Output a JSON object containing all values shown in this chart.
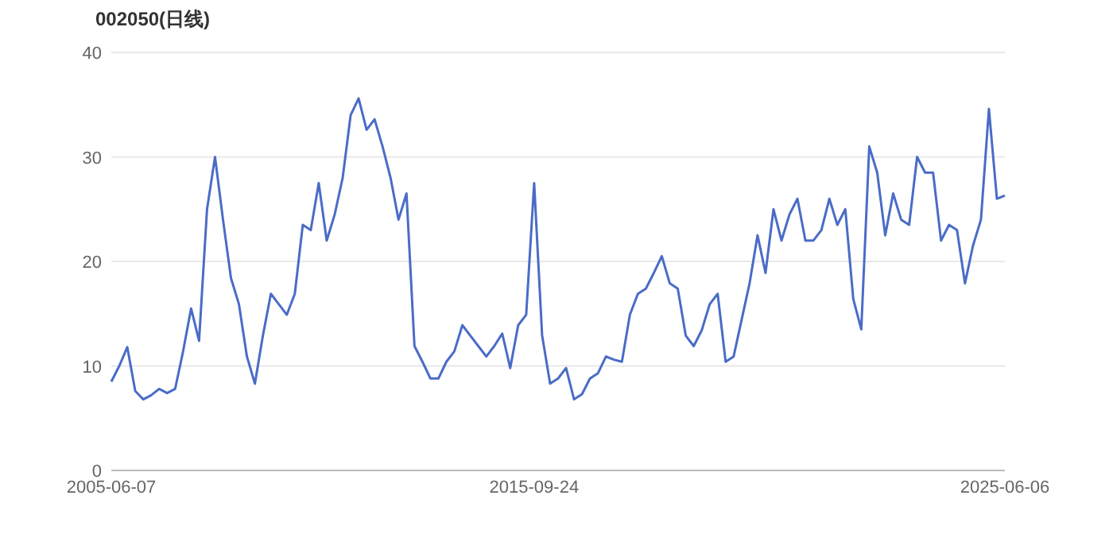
{
  "chart_data": {
    "type": "line",
    "title": "002050(日线)",
    "categories": [
      "2005-06-07",
      null,
      null,
      null,
      null,
      null,
      null,
      null,
      null,
      null,
      null,
      null,
      null,
      null,
      null,
      null,
      null,
      null,
      null,
      null,
      null,
      null,
      null,
      null,
      null,
      null,
      null,
      null,
      null,
      null,
      null,
      null,
      null,
      null,
      null,
      null,
      null,
      null,
      null,
      null,
      null,
      null,
      null,
      null,
      null,
      null,
      null,
      null,
      null,
      null,
      null,
      null,
      null,
      "2015-09-24",
      null,
      null,
      null,
      null,
      null,
      null,
      null,
      null,
      null,
      null,
      null,
      null,
      null,
      null,
      null,
      null,
      null,
      null,
      null,
      null,
      null,
      null,
      null,
      null,
      null,
      null,
      null,
      null,
      null,
      null,
      null,
      null,
      null,
      null,
      null,
      null,
      null,
      null,
      null,
      null,
      null,
      null,
      null,
      null,
      null,
      null,
      null,
      null,
      null,
      null,
      null,
      null,
      null,
      null,
      null,
      null,
      null,
      null,
      "2025-06-06"
    ],
    "series": [
      {
        "color": "#4a6cc7",
        "values": [
          8.5,
          10.0,
          11.8,
          7.6,
          6.8,
          7.2,
          7.8,
          7.4,
          7.8,
          11.4,
          15.5,
          12.4,
          25,
          30,
          24,
          18.4,
          15.9,
          10.9,
          8.3,
          12.9,
          16.9,
          15.9,
          14.9,
          16.9,
          23.5,
          23,
          27.5,
          22,
          24.5,
          28,
          34,
          35.6,
          32.6,
          33.6,
          31,
          28,
          24,
          26.5,
          11.9,
          10.4,
          8.8,
          8.8,
          10.4,
          11.4,
          13.9,
          12.9,
          11.9,
          10.9,
          11.9,
          13.1,
          9.8,
          13.9,
          14.9,
          27.5,
          12.9,
          8.3,
          8.8,
          9.8,
          6.8,
          7.3,
          8.8,
          9.3,
          10.9,
          10.6,
          10.4,
          14.9,
          16.9,
          17.4,
          18.9,
          20.5,
          17.9,
          17.4,
          12.9,
          11.9,
          13.4,
          15.9,
          16.9,
          10.4,
          10.9,
          14.4,
          17.9,
          22.5,
          18.9,
          25,
          22,
          24.5,
          26,
          22,
          22,
          23,
          26,
          23.5,
          25,
          16.4,
          13.5,
          31,
          28.5,
          22.5,
          26.5,
          24,
          23.5,
          30,
          28.5,
          28.5,
          22,
          23.5,
          23,
          17.9,
          21.5,
          24,
          34.6,
          26,
          26.3
        ]
      }
    ],
    "ylim": [
      0,
      40
    ],
    "yticks": [
      0,
      10,
      20,
      30,
      40
    ],
    "grid": "y",
    "marker": "none",
    "line_style": "solid"
  }
}
